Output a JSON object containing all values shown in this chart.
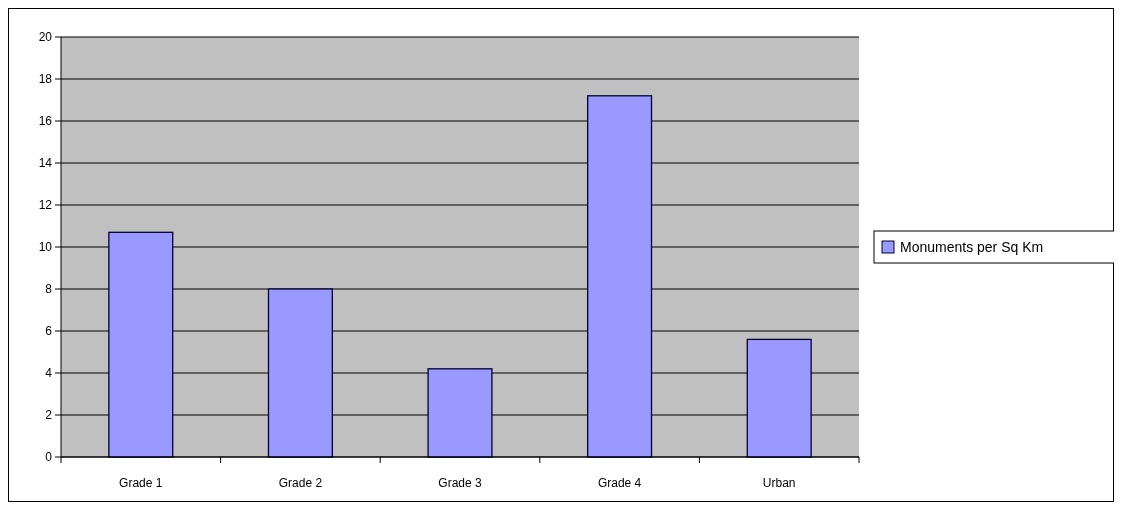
{
  "chart_data": {
    "type": "bar",
    "categories": [
      "Grade 1",
      "Grade 2",
      "Grade 3",
      "Grade 4",
      "Urban"
    ],
    "series": [
      {
        "name": "Monuments per Sq Km",
        "color": "#9999ff",
        "values": [
          10.7,
          8.0,
          4.2,
          17.2,
          5.6
        ]
      }
    ],
    "ylim": [
      0,
      20
    ],
    "yticks": [
      0,
      2,
      4,
      6,
      8,
      10,
      12,
      14,
      16,
      18,
      20
    ],
    "grid": "y",
    "legend": "right"
  }
}
